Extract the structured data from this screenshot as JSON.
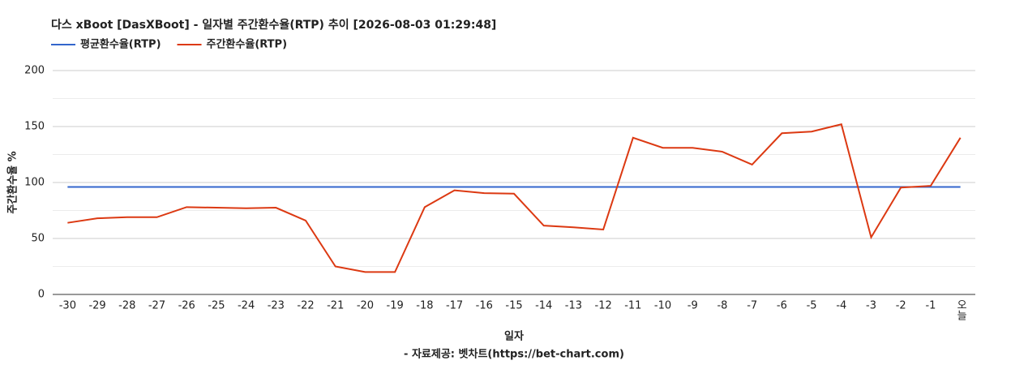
{
  "chart_data": {
    "type": "line",
    "title": "다스 xBoot [DasXBoot] - 일자별 주간환수율(RTP) 추이 [2026-08-03 01:29:48]",
    "x_label": "일자",
    "y_label": "주간환수율 %",
    "source": "- 자료제공: 벳차트(https://bet-chart.com)",
    "categories": [
      "-30",
      "-29",
      "-28",
      "-27",
      "-26",
      "-25",
      "-24",
      "-23",
      "-22",
      "-21",
      "-20",
      "-19",
      "-18",
      "-17",
      "-16",
      "-15",
      "-14",
      "-13",
      "-12",
      "-11",
      "-10",
      "-9",
      "-8",
      "-7",
      "-6",
      "-5",
      "-4",
      "-3",
      "-2",
      "-1",
      "오늘"
    ],
    "series": [
      {
        "name": "평균환수율(RTP)",
        "color": "#3366cc",
        "values": [
          96,
          96,
          96,
          96,
          96,
          96,
          96,
          96,
          96,
          96,
          96,
          96,
          96,
          96,
          96,
          96,
          96,
          96,
          96,
          96,
          96,
          96,
          96,
          96,
          96,
          96,
          96,
          96,
          96,
          96,
          96
        ]
      },
      {
        "name": "주간환수율(RTP)",
        "color": "#dc3912",
        "values": [
          64,
          68,
          69,
          69,
          78,
          77.5,
          77,
          77.5,
          66,
          25,
          20,
          20,
          78,
          93,
          90.5,
          90,
          61.5,
          60,
          58,
          140,
          131,
          131,
          127.5,
          116,
          144,
          145.5,
          152,
          51,
          95.5,
          97,
          140
        ]
      }
    ],
    "ylim": [
      0,
      200
    ],
    "yticks": [
      0,
      50,
      100,
      150,
      200
    ],
    "grid": true
  }
}
